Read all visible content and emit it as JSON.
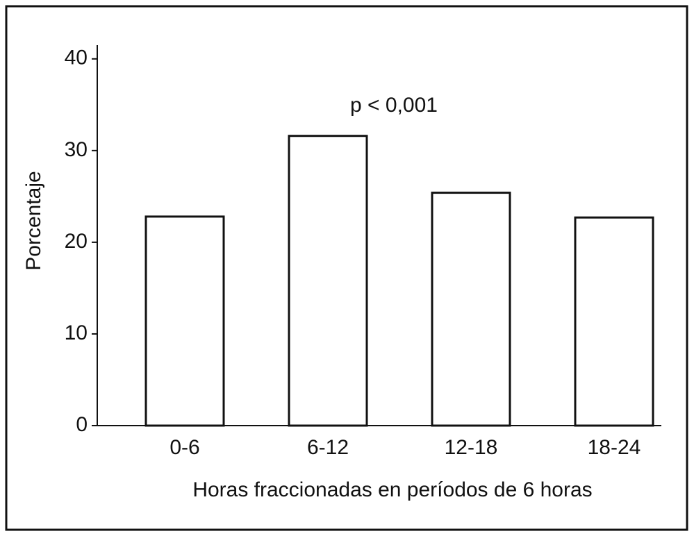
{
  "chart_data": {
    "type": "bar",
    "categories": [
      "0-6",
      "6-12",
      "12-18",
      "18-24"
    ],
    "values": [
      22.8,
      31.6,
      25.4,
      22.7
    ],
    "color": "#ffffff",
    "ylabel": "Porcentaje",
    "xlabel": "Horas fraccionadas en períodos de 6 horas",
    "annotation": "p < 0,001",
    "ylim": [
      0,
      41.5
    ],
    "yticks": [
      0,
      10,
      20,
      30,
      40
    ],
    "grid": false
  }
}
